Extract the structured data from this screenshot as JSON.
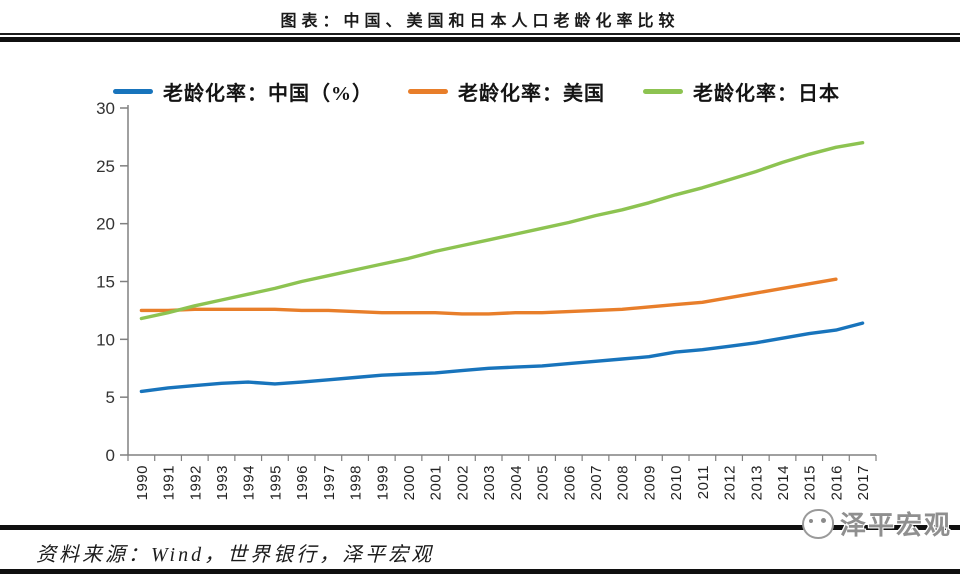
{
  "header": {
    "title": "图表：中国、美国和日本人口老龄化率比较"
  },
  "footer": {
    "source": "资料来源：Wind，世界银行，泽平宏观",
    "watermark": "泽平宏观"
  },
  "chart_data": {
    "type": "line",
    "title": "图表：中国、美国和日本人口老龄化率比较",
    "xlabel": "",
    "ylabel": "",
    "ylim": [
      0,
      30
    ],
    "yticks": [
      0,
      5,
      10,
      15,
      20,
      25,
      30
    ],
    "grid": false,
    "legend_position": "top",
    "axis_color": "#808080",
    "x": [
      1990,
      1991,
      1992,
      1993,
      1994,
      1995,
      1996,
      1997,
      1998,
      1999,
      2000,
      2001,
      2002,
      2003,
      2004,
      2005,
      2006,
      2007,
      2008,
      2009,
      2010,
      2011,
      2012,
      2013,
      2014,
      2015,
      2016,
      2017
    ],
    "series": [
      {
        "name": "老龄化率：中国（%）",
        "color": "#1874BC",
        "values": [
          5.5,
          5.8,
          6.0,
          6.2,
          6.3,
          6.15,
          6.3,
          6.5,
          6.7,
          6.9,
          7.0,
          7.1,
          7.3,
          7.5,
          7.6,
          7.7,
          7.9,
          8.1,
          8.3,
          8.5,
          8.9,
          9.1,
          9.4,
          9.7,
          10.1,
          10.5,
          10.8,
          11.4
        ]
      },
      {
        "name": "老龄化率：美国",
        "color": "#E87E2A",
        "values": [
          12.5,
          12.5,
          12.6,
          12.6,
          12.6,
          12.6,
          12.5,
          12.5,
          12.4,
          12.3,
          12.3,
          12.3,
          12.2,
          12.2,
          12.3,
          12.3,
          12.4,
          12.5,
          12.6,
          12.8,
          13.0,
          13.2,
          13.6,
          14.0,
          14.4,
          14.8,
          15.2,
          null
        ]
      },
      {
        "name": "老龄化率：日本",
        "color": "#8DC351",
        "values": [
          11.8,
          12.3,
          12.9,
          13.4,
          13.9,
          14.4,
          15.0,
          15.5,
          16.0,
          16.5,
          17.0,
          17.6,
          18.1,
          18.6,
          19.1,
          19.6,
          20.1,
          20.7,
          21.2,
          21.8,
          22.5,
          23.1,
          23.8,
          24.5,
          25.3,
          26.0,
          26.6,
          27.0
        ]
      }
    ]
  }
}
